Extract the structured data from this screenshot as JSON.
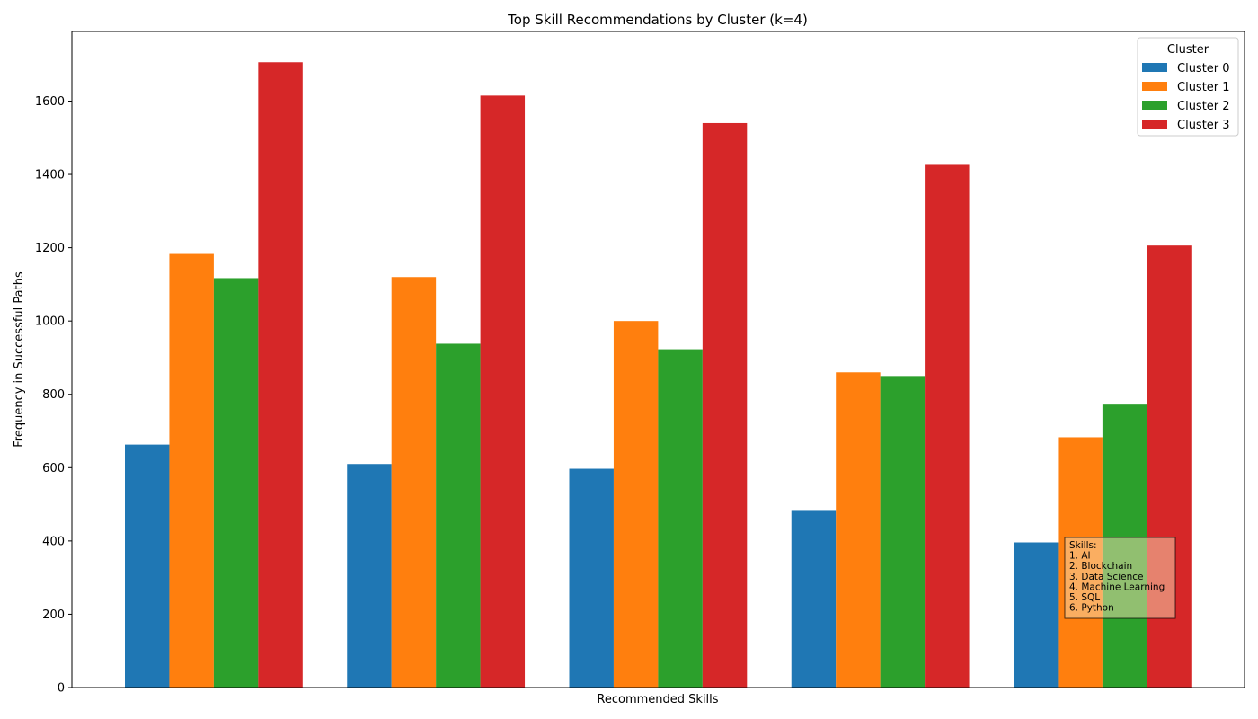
{
  "chart_data": {
    "type": "bar",
    "title": "Top Skill Recommendations by Cluster (k=4)",
    "xlabel": "Recommended Skills",
    "ylabel": "Frequency in Successful Paths",
    "ylim": [
      0,
      1790
    ],
    "yticks": [
      0,
      200,
      400,
      600,
      800,
      1000,
      1200,
      1400,
      1600
    ],
    "category_count": 5,
    "grid": false,
    "legend": {
      "title": "Cluster",
      "placement": "top-right"
    },
    "series": [
      {
        "name": "Cluster 0",
        "color": "#1f77b4",
        "values": [
          663,
          610,
          597,
          482,
          396
        ]
      },
      {
        "name": "Cluster 1",
        "color": "#ff7f0e",
        "values": [
          1183,
          1120,
          1000,
          860,
          683
        ]
      },
      {
        "name": "Cluster 2",
        "color": "#2ca02c",
        "values": [
          1117,
          938,
          923,
          850,
          772
        ]
      },
      {
        "name": "Cluster 3",
        "color": "#d62728",
        "values": [
          1706,
          1615,
          1540,
          1426,
          1206
        ]
      }
    ],
    "annotation": {
      "lines": [
        "Skills:",
        "1. AI",
        "2. Blockchain",
        "3. Data Science",
        "4. Machine Learning",
        "5. SQL",
        "6. Python"
      ]
    }
  }
}
